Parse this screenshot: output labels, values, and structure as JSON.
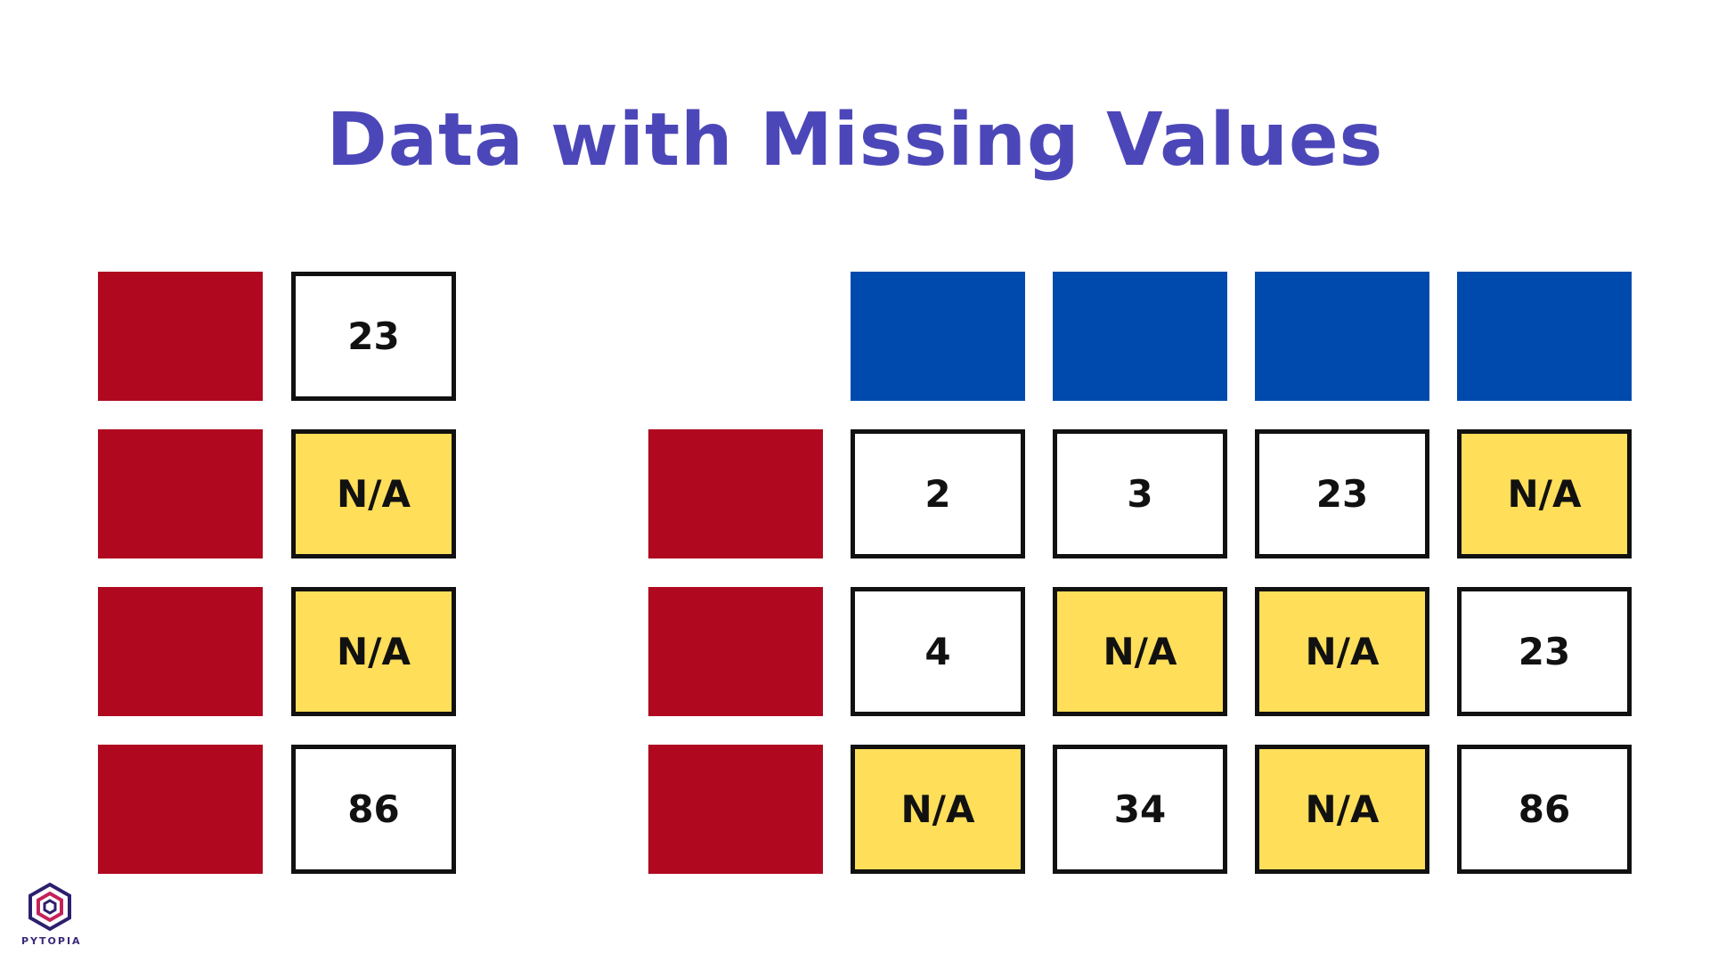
{
  "title": "Data with Missing Values",
  "colors": {
    "title": "#4c47b8",
    "index_block": "#b0081f",
    "header_block": "#004aad",
    "missing_cell": "#ffde59",
    "cell_border": "#111111"
  },
  "series_table": {
    "rows": [
      "23",
      "N/A",
      "N/A",
      "86"
    ]
  },
  "dataframe_table": {
    "column_count": 4,
    "rows": [
      [
        "2",
        "3",
        "23",
        "N/A"
      ],
      [
        "4",
        "N/A",
        "N/A",
        "23"
      ],
      [
        "N/A",
        "34",
        "N/A",
        "86"
      ]
    ]
  },
  "missing_marker": "N/A",
  "logo": {
    "text": "PYTOPIA",
    "icon": "hexagon-logo-icon"
  }
}
